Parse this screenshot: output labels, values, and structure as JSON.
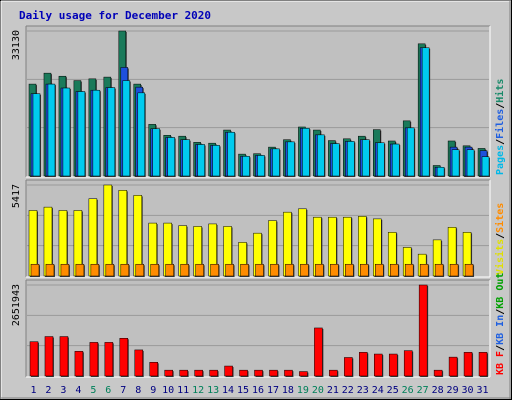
{
  "chart_data": {
    "type": "bar",
    "title": "Daily usage for December 2020",
    "categories": [
      "1",
      "2",
      "3",
      "4",
      "5",
      "6",
      "7",
      "8",
      "9",
      "10",
      "11",
      "12",
      "13",
      "14",
      "15",
      "16",
      "17",
      "18",
      "19",
      "20",
      "21",
      "22",
      "23",
      "24",
      "25",
      "26",
      "27",
      "28",
      "29",
      "30",
      "31"
    ],
    "weekend_days": [
      "5",
      "6",
      "12",
      "13",
      "19",
      "20",
      "26",
      "27"
    ],
    "panels": [
      {
        "name": "hits-files-pages",
        "max_label": "33130",
        "ylim": [
          0,
          33130
        ],
        "series": [
          {
            "name": "Hits",
            "color": "#1a7a5a",
            "values": [
              21000,
              23500,
              22800,
              21800,
              22200,
              22600,
              33130,
              21000,
              11800,
              9300,
              9100,
              7700,
              7500,
              10500,
              5000,
              5100,
              6600,
              8300,
              11200,
              10500,
              8100,
              8500,
              9100,
              10600,
              8000,
              12600,
              30200,
              2400,
              8000,
              6900,
              6300
            ]
          },
          {
            "name": "Files",
            "color": "#1e50dc",
            "values": [
              18800,
              21000,
              20100,
              19300,
              19600,
              20200,
              24800,
              20300,
              10800,
              8800,
              8300,
              7200,
              7000,
              10000,
              4500,
              4700,
              6200,
              7800,
              10900,
              9400,
              7400,
              7900,
              8300,
              7600,
              7300,
              11000,
              29300,
              2000,
              6600,
              6600,
              5800
            ]
          },
          {
            "name": "Pages",
            "color": "#00cbef",
            "values": [
              18800,
              21000,
              20100,
              19300,
              19600,
              20200,
              21800,
              19000,
              10800,
              8800,
              8300,
              7200,
              7000,
              10000,
              4500,
              4700,
              6200,
              7800,
              10900,
              9400,
              7400,
              7900,
              8300,
              7600,
              7300,
              11000,
              29300,
              2000,
              6000,
              6000,
              4400
            ]
          }
        ],
        "legend": [
          "Pages",
          "Files",
          "Hits"
        ]
      },
      {
        "name": "visits-sites",
        "max_label": "5417",
        "ylim": [
          0,
          5417
        ],
        "series": [
          {
            "name": "Visits",
            "color": "#ffff00",
            "values": [
              3900,
              4100,
              3900,
              3900,
              4600,
              5417,
              5100,
              4800,
              3150,
              3150,
              3000,
              2950,
              3100,
              2950,
              2000,
              2550,
              3300,
              3800,
              4000,
              3500,
              3500,
              3500,
              3550,
              3400,
              2600,
              1700,
              1300,
              2150,
              2900,
              2600,
              0
            ]
          },
          {
            "name": "Sites",
            "color": "#ff8c00",
            "values": [
              700,
              700,
              700,
              700,
              700,
              700,
              700,
              700,
              700,
              700,
              700,
              700,
              700,
              700,
              700,
              700,
              700,
              700,
              700,
              700,
              700,
              700,
              700,
              700,
              700,
              700,
              700,
              700,
              700,
              700,
              0
            ]
          }
        ],
        "legend": [
          "Visits",
          "Sites"
        ]
      },
      {
        "name": "kbytes",
        "max_label": "2651943",
        "ylim": [
          0,
          2651943
        ],
        "series": [
          {
            "name": "KBytes",
            "color": "#ff0000",
            "values": [
              1000000,
              1150000,
              1150000,
              720000,
              980000,
              980000,
              1100000,
              760000,
              400000,
              170000,
              170000,
              170000,
              170000,
              290000,
              170000,
              170000,
              170000,
              170000,
              130000,
              1400000,
              170000,
              540000,
              690000,
              640000,
              640000,
              740000,
              2651943,
              170000,
              550000,
              690000,
              690000
            ]
          }
        ],
        "legend": [
          "KB F",
          "KB In",
          "KB Out"
        ]
      }
    ],
    "legend_colors": {
      "Hits": "#1a8a6a",
      "Files": "#2060e0",
      "Pages": "#00b8e8",
      "Visits": "#e0e000",
      "Sites": "#ff8c00",
      "KB F": "#ff0000",
      "KB In": "#2060e0",
      "KB Out": "#00a000"
    },
    "weekday_color": "#000080",
    "weekend_color": "#00805a",
    "grid": true
  }
}
